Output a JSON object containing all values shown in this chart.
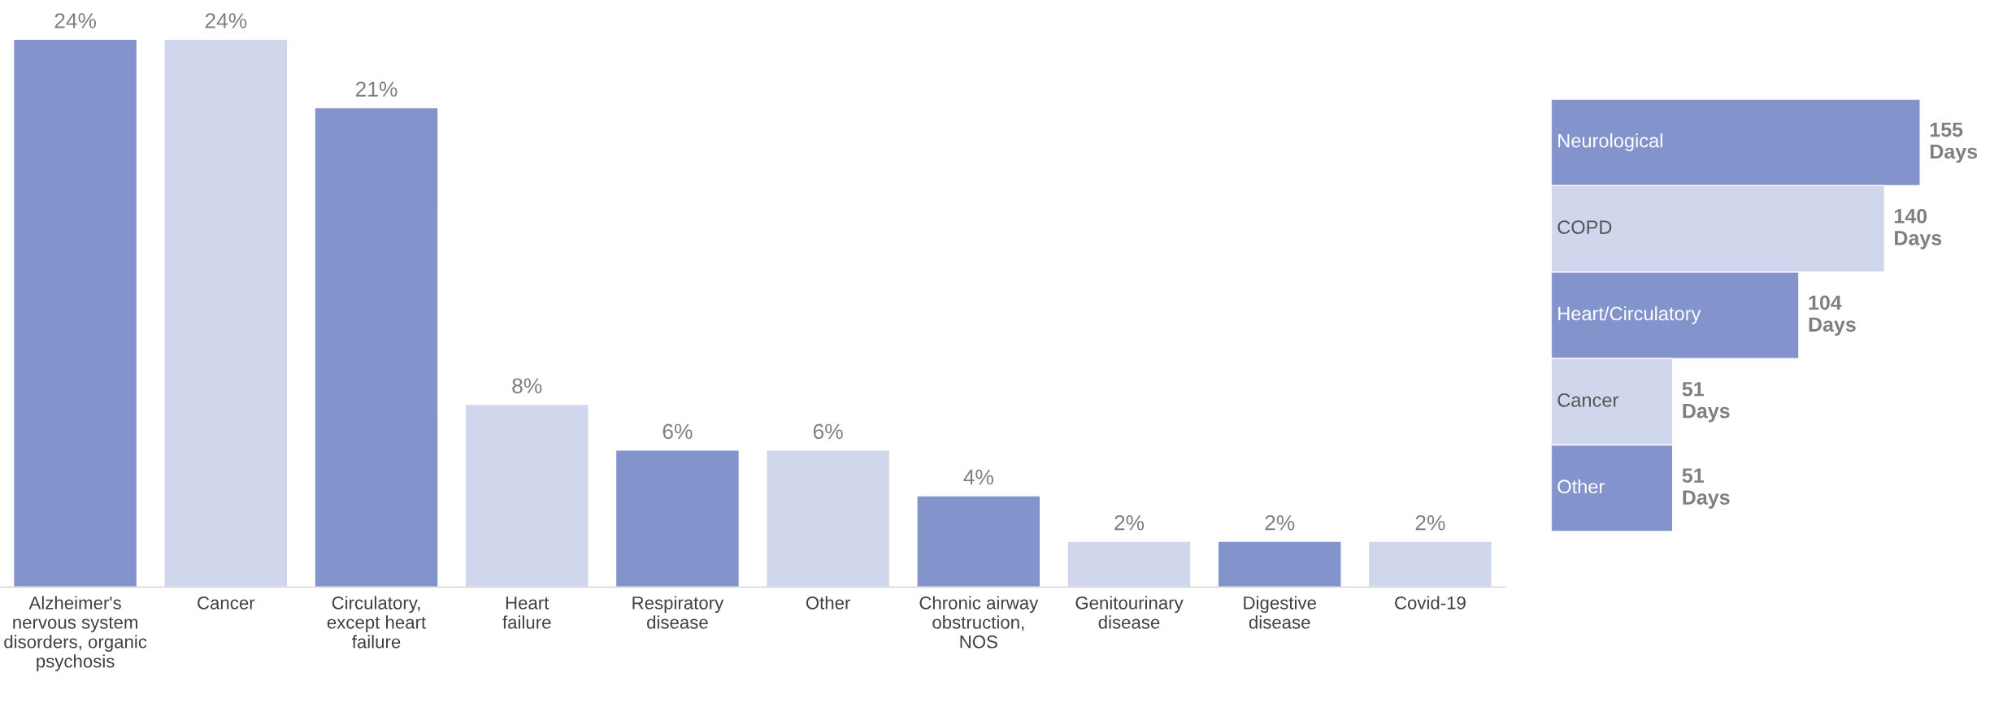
{
  "chart_data": [
    {
      "type": "bar",
      "categories": [
        "Alzheimer's\nnervous system\ndisorders, organic\npsychosis",
        "Cancer",
        "Circulatory,\nexcept heart\nfailure",
        "Heart\nfailure",
        "Respiratory\ndisease",
        "Other",
        "Chronic airway\nobstruction,\nNOS",
        "Genitourinary\ndisease",
        "Digestive\ndisease",
        "Covid-19"
      ],
      "values": [
        24,
        24,
        21,
        8,
        6,
        6,
        4,
        2,
        2,
        2
      ],
      "value_labels": [
        "24%",
        "24%",
        "21%",
        "8%",
        "6%",
        "6%",
        "4%",
        "2%",
        "2%",
        "2%"
      ],
      "colors": [
        "#8394cc",
        "#d0d6eb",
        "#8394cc",
        "#d0d6eb",
        "#8394cc",
        "#d0d6eb",
        "#8394cc",
        "#d0d6eb",
        "#8394cc",
        "#d0d6eb"
      ],
      "tick_labels": "x",
      "grid": false,
      "legend": false
    },
    {
      "type": "bar",
      "orientation": "horizontal",
      "categories": [
        "Neurological",
        "COPD",
        "Heart/Circulatory",
        "Cancer",
        "Other"
      ],
      "values": [
        155,
        140,
        104,
        51,
        51
      ],
      "value_labels": [
        "155\nDays",
        "140\nDays",
        "104\nDays",
        "51\nDays",
        "51\nDays"
      ],
      "colors": [
        "#8394cc",
        "#d0d6eb",
        "#8394cc",
        "#d0d6eb",
        "#8394cc"
      ],
      "xlim": [
        0,
        155
      ],
      "tick_labels": false,
      "grid": false,
      "legend": false
    }
  ]
}
